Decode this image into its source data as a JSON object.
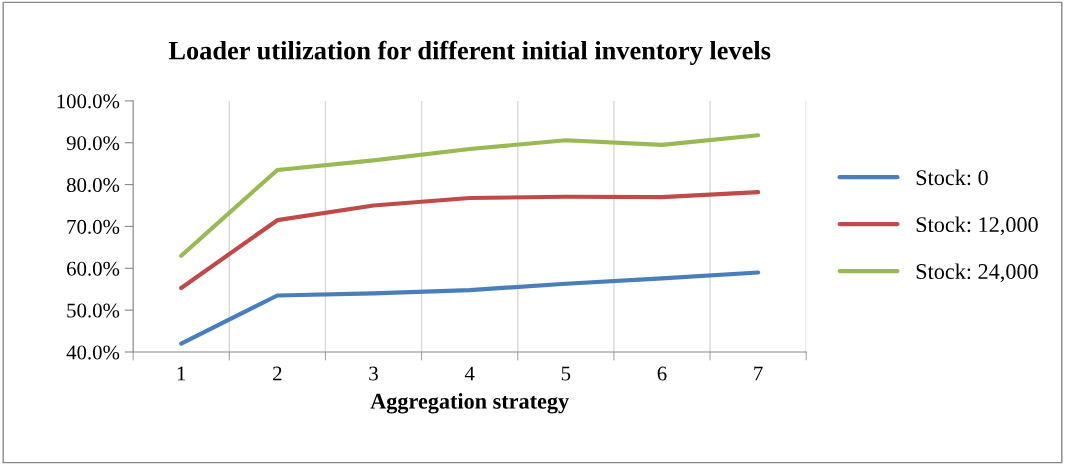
{
  "chart_data": {
    "type": "line",
    "title": "Loader utilization for different initial inventory levels",
    "xlabel": "Aggregation strategy",
    "categories": [
      "1",
      "2",
      "3",
      "4",
      "5",
      "6",
      "7"
    ],
    "series": [
      {
        "name": "Stock: 0",
        "color": "#4a7ebb",
        "values": [
          42.0,
          53.5,
          54.0,
          54.8,
          56.3,
          57.6,
          59.0
        ]
      },
      {
        "name": "Stock: 12,000",
        "color": "#be4b48",
        "values": [
          55.3,
          71.5,
          75.0,
          76.8,
          77.1,
          77.0,
          78.2
        ]
      },
      {
        "name": "Stock: 24,000",
        "color": "#98b954",
        "values": [
          63.0,
          83.5,
          85.8,
          88.5,
          90.6,
          89.5,
          91.8
        ]
      }
    ],
    "ylim": [
      40,
      100
    ],
    "yticks": [
      {
        "value": 40,
        "label": "40.0%"
      },
      {
        "value": 50,
        "label": "50.0%"
      },
      {
        "value": 60,
        "label": "60.0%"
      },
      {
        "value": 70,
        "label": "70.0%"
      },
      {
        "value": 80,
        "label": "80.0%"
      },
      {
        "value": 90,
        "label": "90.0%"
      },
      {
        "value": 100,
        "label": "100.0%"
      }
    ],
    "grid": "x",
    "legend": "right",
    "marker": "none",
    "line_style": "solid"
  }
}
